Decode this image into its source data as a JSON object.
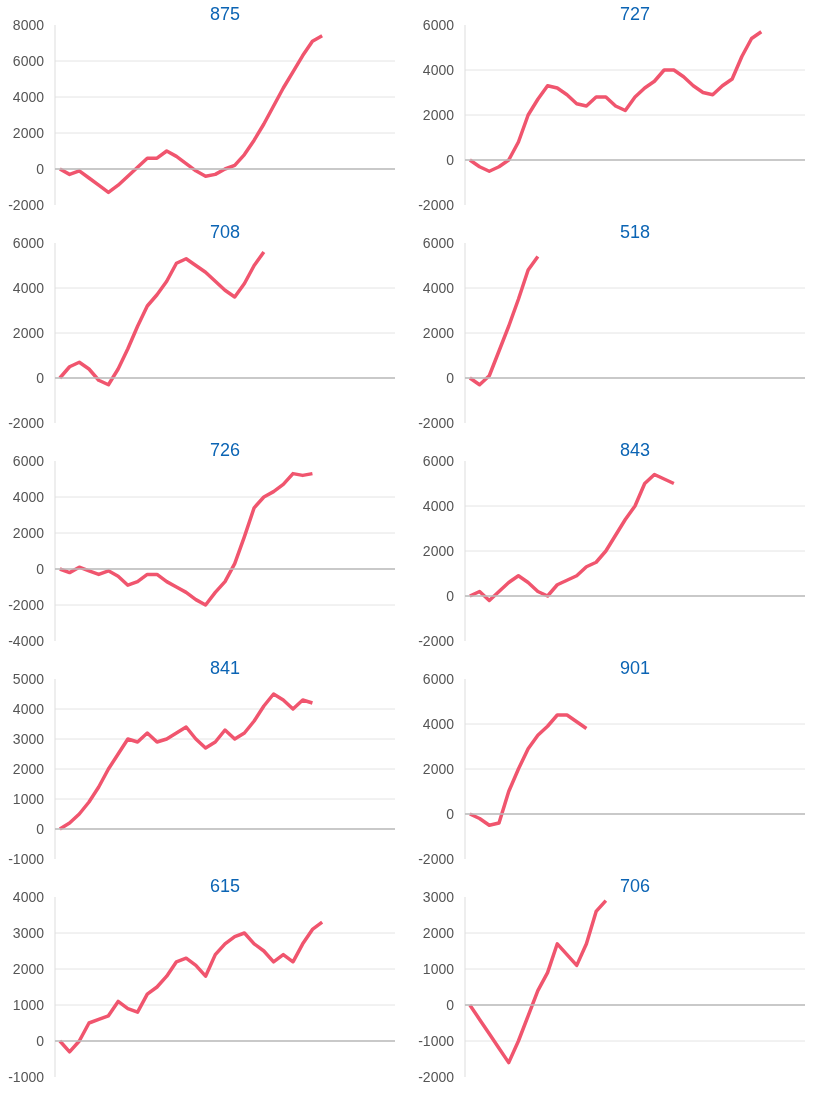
{
  "chart_data": [
    {
      "type": "line",
      "title": "875",
      "categories": [
        null,
        null,
        null,
        null,
        null,
        null,
        null,
        null,
        null,
        null,
        null,
        null,
        null,
        null,
        null,
        null,
        null,
        null,
        null,
        null,
        null,
        null,
        null,
        null,
        null,
        null,
        null,
        null,
        null,
        null,
        null,
        null,
        null,
        null,
        null,
        null
      ],
      "series": [
        {
          "color": "#f0556e",
          "values": [
            0,
            -300,
            -100,
            -500,
            -900,
            -1300,
            -900,
            -400,
            100,
            600,
            600,
            1000,
            700,
            300,
            -100,
            -400,
            -300,
            0,
            200,
            800,
            1600,
            2500,
            3500,
            4500,
            5400,
            6300,
            7100,
            7400,
            null,
            null,
            null,
            null,
            null,
            null,
            null,
            null
          ]
        }
      ],
      "ylim": [
        -2000,
        8000
      ],
      "yticks": [
        -2000,
        0,
        2000,
        4000,
        6000,
        8000
      ],
      "grid": "y",
      "tick_labels": "y",
      "ref_lines": [
        {
          "axis": "y",
          "value": 0,
          "color": "#bbbbbb"
        }
      ]
    },
    {
      "type": "line",
      "title": "727",
      "categories": [
        null,
        null,
        null,
        null,
        null,
        null,
        null,
        null,
        null,
        null,
        null,
        null,
        null,
        null,
        null,
        null,
        null,
        null,
        null,
        null,
        null,
        null,
        null,
        null,
        null,
        null,
        null,
        null,
        null,
        null,
        null,
        null,
        null,
        null,
        null,
        null
      ],
      "series": [
        {
          "color": "#f0556e",
          "values": [
            0,
            -300,
            -500,
            -300,
            0,
            800,
            2000,
            2700,
            3300,
            3200,
            2900,
            2500,
            2400,
            2800,
            2800,
            2400,
            2200,
            2800,
            3200,
            3500,
            4000,
            4000,
            3700,
            3300,
            3000,
            2900,
            3300,
            3600,
            4600,
            5400,
            5700,
            null,
            null,
            null,
            null,
            null
          ]
        }
      ],
      "ylim": [
        -2000,
        6000
      ],
      "yticks": [
        -2000,
        0,
        2000,
        4000,
        6000
      ],
      "grid": "y",
      "tick_labels": "y",
      "ref_lines": [
        {
          "axis": "y",
          "value": 0,
          "color": "#bbbbbb"
        }
      ]
    },
    {
      "type": "line",
      "title": "708",
      "categories": [
        null,
        null,
        null,
        null,
        null,
        null,
        null,
        null,
        null,
        null,
        null,
        null,
        null,
        null,
        null,
        null,
        null,
        null,
        null,
        null,
        null,
        null,
        null,
        null,
        null,
        null,
        null,
        null,
        null,
        null,
        null,
        null,
        null,
        null,
        null,
        null
      ],
      "series": [
        {
          "color": "#f0556e",
          "values": [
            0,
            500,
            700,
            400,
            -100,
            -300,
            400,
            1300,
            2300,
            3200,
            3700,
            4300,
            5100,
            5300,
            5000,
            4700,
            4300,
            3900,
            3600,
            4200,
            5000,
            5600,
            null,
            null,
            null,
            null,
            null,
            null,
            null,
            null,
            null,
            null,
            null,
            null,
            null,
            null
          ]
        }
      ],
      "ylim": [
        -2000,
        6000
      ],
      "yticks": [
        -2000,
        0,
        2000,
        4000,
        6000
      ],
      "grid": "y",
      "tick_labels": "y",
      "ref_lines": [
        {
          "axis": "y",
          "value": 0,
          "color": "#bbbbbb"
        }
      ]
    },
    {
      "type": "line",
      "title": "518",
      "categories": [
        null,
        null,
        null,
        null,
        null,
        null,
        null,
        null,
        null,
        null,
        null,
        null,
        null,
        null,
        null,
        null,
        null,
        null,
        null,
        null,
        null,
        null,
        null,
        null,
        null,
        null,
        null,
        null,
        null,
        null,
        null,
        null,
        null,
        null,
        null,
        null
      ],
      "series": [
        {
          "color": "#f0556e",
          "values": [
            0,
            -300,
            100,
            1200,
            2300,
            3500,
            4800,
            5400,
            null,
            null,
            null,
            null,
            null,
            null,
            null,
            null,
            null,
            null,
            null,
            null,
            null,
            null,
            null,
            null,
            null,
            null,
            null,
            null,
            null,
            null,
            null,
            null,
            null,
            null,
            null,
            null
          ]
        }
      ],
      "ylim": [
        -2000,
        6000
      ],
      "yticks": [
        -2000,
        0,
        2000,
        4000,
        6000
      ],
      "grid": "y",
      "tick_labels": "y",
      "ref_lines": [
        {
          "axis": "y",
          "value": 0,
          "color": "#bbbbbb"
        }
      ]
    },
    {
      "type": "line",
      "title": "726",
      "categories": [
        null,
        null,
        null,
        null,
        null,
        null,
        null,
        null,
        null,
        null,
        null,
        null,
        null,
        null,
        null,
        null,
        null,
        null,
        null,
        null,
        null,
        null,
        null,
        null,
        null,
        null,
        null,
        null,
        null,
        null,
        null,
        null,
        null,
        null,
        null,
        null
      ],
      "series": [
        {
          "color": "#f0556e",
          "values": [
            0,
            -200,
            100,
            -100,
            -300,
            -100,
            -400,
            -900,
            -700,
            -300,
            -300,
            -700,
            -1000,
            -1300,
            -1700,
            -2000,
            -1300,
            -700,
            300,
            1800,
            3400,
            4000,
            4300,
            4700,
            5300,
            5200,
            5300,
            null,
            null,
            null,
            null,
            null,
            null,
            null,
            null,
            null
          ]
        }
      ],
      "ylim": [
        -4000,
        6000
      ],
      "yticks": [
        -4000,
        -2000,
        0,
        2000,
        4000,
        6000
      ],
      "grid": "y",
      "tick_labels": "y",
      "ref_lines": [
        {
          "axis": "y",
          "value": 0,
          "color": "#bbbbbb"
        }
      ]
    },
    {
      "type": "line",
      "title": "843",
      "categories": [
        null,
        null,
        null,
        null,
        null,
        null,
        null,
        null,
        null,
        null,
        null,
        null,
        null,
        null,
        null,
        null,
        null,
        null,
        null,
        null,
        null,
        null,
        null,
        null,
        null,
        null,
        null,
        null,
        null,
        null,
        null,
        null,
        null,
        null,
        null,
        null
      ],
      "series": [
        {
          "color": "#f0556e",
          "values": [
            0,
            200,
            -200,
            200,
            600,
            900,
            600,
            200,
            0,
            500,
            700,
            900,
            1300,
            1500,
            2000,
            2700,
            3400,
            4000,
            5000,
            5400,
            5200,
            5000,
            null,
            null,
            null,
            null,
            null,
            null,
            null,
            null,
            null,
            null,
            null,
            null,
            null,
            null
          ]
        }
      ],
      "ylim": [
        -2000,
        6000
      ],
      "yticks": [
        -2000,
        0,
        2000,
        4000,
        6000
      ],
      "grid": "y",
      "tick_labels": "y",
      "ref_lines": [
        {
          "axis": "y",
          "value": 0,
          "color": "#bbbbbb"
        }
      ]
    },
    {
      "type": "line",
      "title": "841",
      "categories": [
        null,
        null,
        null,
        null,
        null,
        null,
        null,
        null,
        null,
        null,
        null,
        null,
        null,
        null,
        null,
        null,
        null,
        null,
        null,
        null,
        null,
        null,
        null,
        null,
        null,
        null,
        null,
        null,
        null,
        null,
        null,
        null,
        null,
        null,
        null,
        null
      ],
      "series": [
        {
          "color": "#f0556e",
          "values": [
            0,
            200,
            500,
            900,
            1400,
            2000,
            2500,
            3000,
            2900,
            3200,
            2900,
            3000,
            3200,
            3400,
            3000,
            2700,
            2900,
            3300,
            3000,
            3200,
            3600,
            4100,
            4500,
            4300,
            4000,
            4300,
            4200,
            null,
            null,
            null,
            null,
            null,
            null,
            null,
            null,
            null
          ]
        }
      ],
      "ylim": [
        -1000,
        5000
      ],
      "yticks": [
        -1000,
        0,
        1000,
        2000,
        3000,
        4000,
        5000
      ],
      "grid": "y",
      "tick_labels": "y",
      "ref_lines": [
        {
          "axis": "y",
          "value": 0,
          "color": "#bbbbbb"
        }
      ]
    },
    {
      "type": "line",
      "title": "901",
      "categories": [
        null,
        null,
        null,
        null,
        null,
        null,
        null,
        null,
        null,
        null,
        null,
        null,
        null,
        null,
        null,
        null,
        null,
        null,
        null,
        null,
        null,
        null,
        null,
        null,
        null,
        null,
        null,
        null,
        null,
        null,
        null,
        null,
        null,
        null,
        null,
        null
      ],
      "series": [
        {
          "color": "#f0556e",
          "values": [
            0,
            -200,
            -500,
            -400,
            1000,
            2000,
            2900,
            3500,
            3900,
            4400,
            4400,
            4100,
            3800,
            null,
            null,
            null,
            null,
            null,
            null,
            null,
            null,
            null,
            null,
            null,
            null,
            null,
            null,
            null,
            null,
            null,
            null,
            null,
            null,
            null,
            null,
            null
          ]
        }
      ],
      "ylim": [
        -2000,
        6000
      ],
      "yticks": [
        -2000,
        0,
        2000,
        4000,
        6000
      ],
      "grid": "y",
      "tick_labels": "y",
      "ref_lines": [
        {
          "axis": "y",
          "value": 0,
          "color": "#bbbbbb"
        }
      ]
    },
    {
      "type": "line",
      "title": "615",
      "categories": [
        null,
        null,
        null,
        null,
        null,
        null,
        null,
        null,
        null,
        null,
        null,
        null,
        null,
        null,
        null,
        null,
        null,
        null,
        null,
        null,
        null,
        null,
        null,
        null,
        null,
        null,
        null,
        null,
        null,
        null,
        null,
        null,
        null,
        null,
        null,
        null
      ],
      "series": [
        {
          "color": "#f0556e",
          "values": [
            0,
            -300,
            0,
            500,
            600,
            700,
            1100,
            900,
            800,
            1300,
            1500,
            1800,
            2200,
            2300,
            2100,
            1800,
            2400,
            2700,
            2900,
            3000,
            2700,
            2500,
            2200,
            2400,
            2200,
            2700,
            3100,
            3300,
            null,
            null,
            null,
            null,
            null,
            null,
            null,
            null
          ]
        }
      ],
      "ylim": [
        -1000,
        4000
      ],
      "yticks": [
        -1000,
        0,
        1000,
        2000,
        3000,
        4000
      ],
      "grid": "y",
      "tick_labels": "y",
      "ref_lines": [
        {
          "axis": "y",
          "value": 0,
          "color": "#bbbbbb"
        }
      ]
    },
    {
      "type": "line",
      "title": "706",
      "categories": [
        null,
        null,
        null,
        null,
        null,
        null,
        null,
        null,
        null,
        null,
        null,
        null,
        null,
        null,
        null,
        null,
        null,
        null,
        null,
        null,
        null,
        null,
        null,
        null,
        null,
        null,
        null,
        null,
        null,
        null,
        null,
        null,
        null,
        null,
        null,
        null
      ],
      "series": [
        {
          "color": "#f0556e",
          "values": [
            0,
            -400,
            -800,
            -1200,
            -1600,
            -1000,
            -300,
            400,
            900,
            1700,
            1400,
            1100,
            1700,
            2600,
            2900,
            null,
            null,
            null,
            null,
            null,
            null,
            null,
            null,
            null,
            null,
            null,
            null,
            null,
            null,
            null,
            null,
            null,
            null,
            null,
            null,
            null
          ]
        }
      ],
      "ylim": [
        -2000,
        3000
      ],
      "yticks": [
        -2000,
        -1000,
        0,
        1000,
        2000,
        3000
      ],
      "grid": "y",
      "tick_labels": "y",
      "ref_lines": [
        {
          "axis": "y",
          "value": 0,
          "color": "#bbbbbb"
        }
      ]
    }
  ]
}
